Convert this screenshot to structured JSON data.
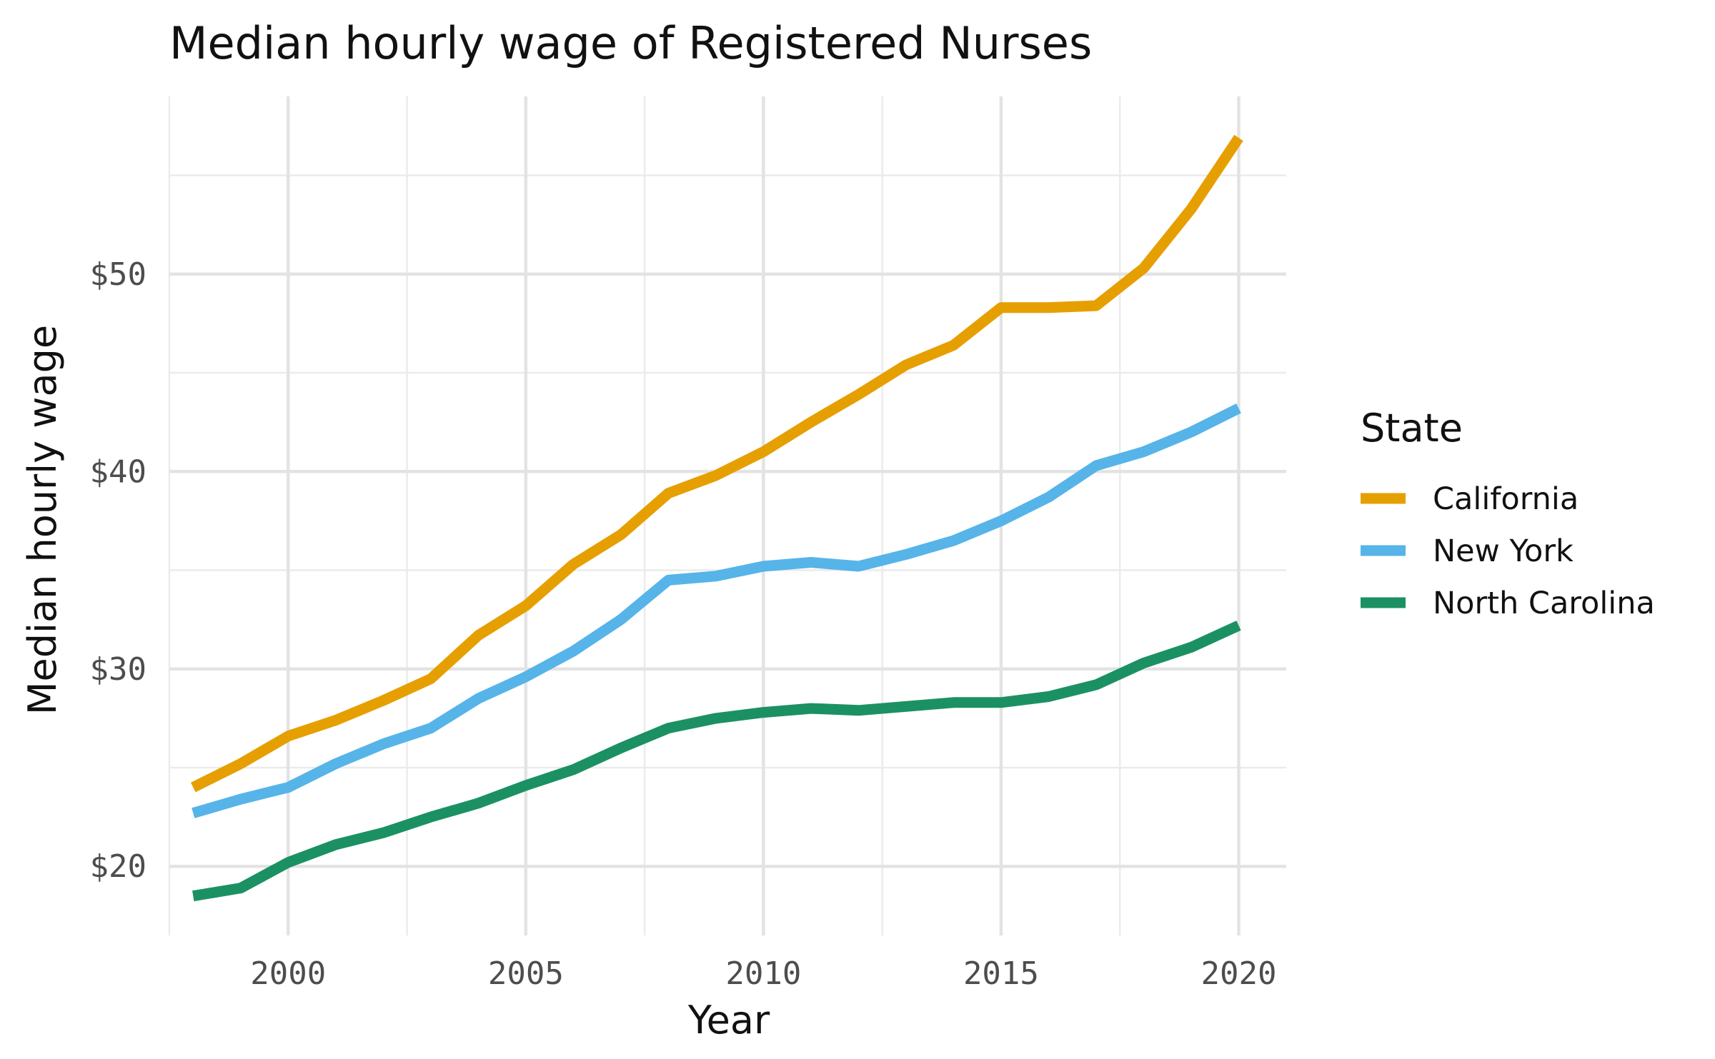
{
  "chart_data": {
    "type": "line",
    "title": "Median hourly wage of Registered Nurses",
    "xlabel": "Year",
    "ylabel": "Median hourly wage",
    "x": [
      1998,
      1999,
      2000,
      2001,
      2002,
      2003,
      2004,
      2005,
      2006,
      2007,
      2008,
      2009,
      2010,
      2011,
      2012,
      2013,
      2014,
      2015,
      2016,
      2017,
      2018,
      2019,
      2020
    ],
    "xlim": [
      1997.5,
      2021
    ],
    "ylim": [
      16.5,
      59
    ],
    "x_ticks": [
      2000,
      2005,
      2010,
      2015,
      2020
    ],
    "x_tick_labels": [
      "2000",
      "2005",
      "2010",
      "2015",
      "2020"
    ],
    "x_minor_ticks": [
      1997.5,
      2002.5,
      2007.5,
      2012.5,
      2017.5
    ],
    "y_ticks": [
      20,
      30,
      40,
      50
    ],
    "y_tick_labels": [
      "$20",
      "$30",
      "$40",
      "$50"
    ],
    "y_minor_ticks": [
      25,
      35,
      45,
      55
    ],
    "grid": true,
    "legend": {
      "title": "State",
      "position": "right"
    },
    "series": [
      {
        "name": "California",
        "color": "#E69F00",
        "values": [
          24.0,
          25.2,
          26.6,
          27.4,
          28.4,
          29.5,
          31.7,
          33.2,
          35.3,
          36.8,
          38.9,
          39.8,
          41.0,
          42.5,
          43.9,
          45.4,
          46.4,
          48.3,
          48.3,
          48.4,
          50.3,
          53.3,
          56.9
        ]
      },
      {
        "name": "New York",
        "color": "#56B4E9",
        "values": [
          22.7,
          23.4,
          24.0,
          25.2,
          26.2,
          27.0,
          28.5,
          29.6,
          30.9,
          32.5,
          34.5,
          34.7,
          35.2,
          35.4,
          35.2,
          35.8,
          36.5,
          37.5,
          38.7,
          40.3,
          41.0,
          42.0,
          43.2
        ]
      },
      {
        "name": "North Carolina",
        "color": "#1B9163",
        "values": [
          18.5,
          18.9,
          20.2,
          21.1,
          21.7,
          22.5,
          23.2,
          24.1,
          24.9,
          26.0,
          27.0,
          27.5,
          27.8,
          28.0,
          27.9,
          28.1,
          28.3,
          28.3,
          28.6,
          29.2,
          30.3,
          31.1,
          32.2
        ]
      }
    ]
  }
}
